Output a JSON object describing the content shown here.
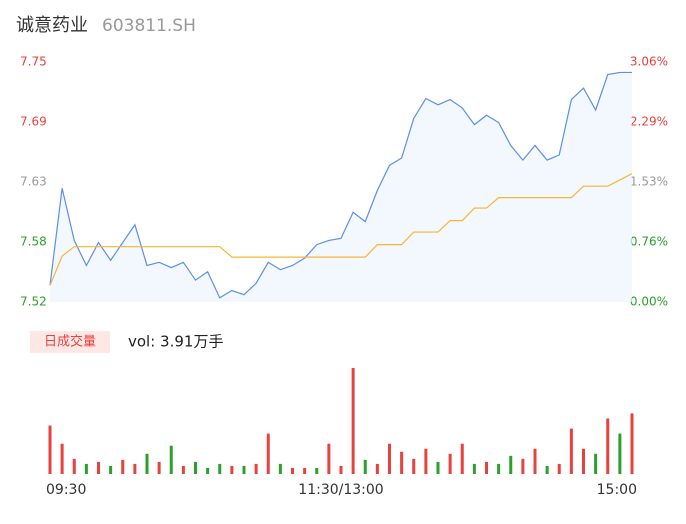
{
  "header": {
    "name": "诚意药业",
    "code": "603811.SH"
  },
  "chart_data": {
    "type": "intraday",
    "xlim": [
      0,
      240
    ],
    "xticks": [
      {
        "value": 0,
        "label": "09:30"
      },
      {
        "value": 120,
        "label": "11:30/13:00"
      },
      {
        "value": 240,
        "label": "15:00"
      }
    ],
    "x": [
      0,
      5,
      10,
      15,
      20,
      25,
      30,
      35,
      40,
      45,
      50,
      55,
      60,
      65,
      70,
      75,
      80,
      85,
      90,
      95,
      100,
      105,
      110,
      115,
      120,
      125,
      130,
      135,
      140,
      145,
      150,
      155,
      160,
      165,
      170,
      175,
      180,
      185,
      190,
      195,
      200,
      205,
      210,
      215,
      220,
      225,
      230,
      235,
      240
    ],
    "ylim": [
      7.52,
      7.75
    ],
    "yticks": [
      {
        "value": 7.52,
        "label": "7.52"
      },
      {
        "value": 7.5775,
        "label": "7.58"
      },
      {
        "value": 7.635,
        "label": "7.63"
      },
      {
        "value": 7.6925,
        "label": "7.69"
      },
      {
        "value": 7.75,
        "label": "7.75"
      }
    ],
    "y2lim": [
      0,
      3.06
    ],
    "y2ticks": [
      {
        "value": 0,
        "label": "0.00%"
      },
      {
        "value": 0.765,
        "label": "0.76%"
      },
      {
        "value": 1.53,
        "label": "1.53%"
      },
      {
        "value": 2.295,
        "label": "2.29%"
      },
      {
        "value": 3.06,
        "label": "3.06%"
      }
    ],
    "series": [
      {
        "color": "#5b8fe8",
        "values": [
          7.536,
          7.629,
          7.579,
          7.555,
          7.577,
          7.56,
          7.577,
          7.594,
          7.555,
          7.558,
          7.553,
          7.558,
          7.541,
          7.549,
          7.524,
          7.531,
          7.527,
          7.538,
          7.558,
          7.551,
          7.555,
          7.562,
          7.575,
          7.579,
          7.581,
          7.606,
          7.597,
          7.627,
          7.651,
          7.658,
          7.696,
          7.715,
          7.709,
          7.714,
          7.706,
          7.69,
          7.699,
          7.692,
          7.67,
          7.656,
          7.67,
          7.656,
          7.661,
          7.714,
          7.725,
          7.704,
          7.738,
          7.74,
          7.74
        ]
      },
      {
        "color": "#f5b731",
        "values": [
          7.536,
          7.564,
          7.573,
          7.573,
          7.573,
          7.573,
          7.573,
          7.573,
          7.573,
          7.573,
          7.573,
          7.573,
          7.573,
          7.573,
          7.573,
          7.563,
          7.563,
          7.563,
          7.563,
          7.563,
          7.563,
          7.563,
          7.563,
          7.563,
          7.563,
          7.563,
          7.563,
          7.575,
          7.575,
          7.575,
          7.587,
          7.587,
          7.587,
          7.598,
          7.598,
          7.61,
          7.61,
          7.62,
          7.62,
          7.62,
          7.62,
          7.62,
          7.62,
          7.62,
          7.631,
          7.631,
          7.631,
          7.637,
          7.643
        ]
      }
    ],
    "volume": {
      "label": "日成交量",
      "total": "vol: 3.91万手",
      "values": [
        48,
        30,
        15,
        10,
        12,
        8,
        14,
        10,
        20,
        12,
        28,
        8,
        12,
        6,
        10,
        8,
        8,
        10,
        40,
        10,
        6,
        6,
        6,
        30,
        8,
        105,
        14,
        10,
        30,
        22,
        15,
        25,
        12,
        20,
        30,
        10,
        12,
        10,
        18,
        15,
        25,
        8,
        10,
        45,
        25,
        20,
        55,
        40,
        60
      ],
      "colors": [
        "#e8413e",
        "#e8413e",
        "#e8413e",
        "#2ca02c",
        "#e8413e",
        "#2ca02c",
        "#e8413e",
        "#e8413e",
        "#2ca02c",
        "#e8413e",
        "#2ca02c",
        "#e8413e",
        "#2ca02c",
        "#2ca02c",
        "#2ca02c",
        "#e8413e",
        "#2ca02c",
        "#e8413e",
        "#e8413e",
        "#2ca02c",
        "#e8413e",
        "#e8413e",
        "#2ca02c",
        "#e8413e",
        "#e8413e",
        "#e8413e",
        "#2ca02c",
        "#e8413e",
        "#e8413e",
        "#e8413e",
        "#e8413e",
        "#e8413e",
        "#2ca02c",
        "#e8413e",
        "#e8413e",
        "#2ca02c",
        "#e8413e",
        "#2ca02c",
        "#2ca02c",
        "#e8413e",
        "#e8413e",
        "#2ca02c",
        "#e8413e",
        "#e8413e",
        "#e8413e",
        "#2ca02c",
        "#e8413e",
        "#2ca02c",
        "#e8413e"
      ]
    }
  }
}
